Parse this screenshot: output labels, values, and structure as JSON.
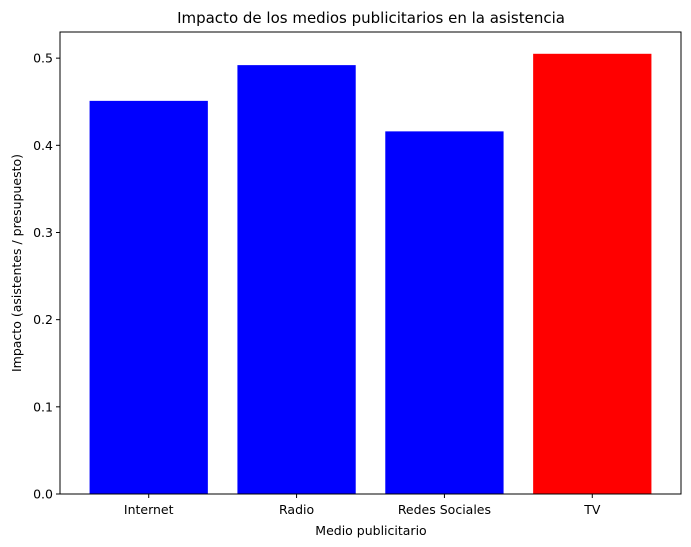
{
  "chart_data": {
    "type": "bar",
    "title": "Impacto de los medios publicitarios en la asistencia",
    "xlabel": "Medio publicitario",
    "ylabel": "Impacto (asistentes / presupuesto)",
    "categories": [
      "Internet",
      "Radio",
      "Redes Sociales",
      "TV"
    ],
    "values": [
      0.451,
      0.492,
      0.416,
      0.505
    ],
    "colors": [
      "#0000ff",
      "#0000ff",
      "#0000ff",
      "#ff0000"
    ],
    "ylim": [
      0,
      0.53
    ],
    "yticks": [
      0.0,
      0.1,
      0.2,
      0.3,
      0.4,
      0.5
    ],
    "ytick_labels": [
      "0.0",
      "0.1",
      "0.2",
      "0.3",
      "0.4",
      "0.5"
    ],
    "grid": false,
    "legend": false
  }
}
